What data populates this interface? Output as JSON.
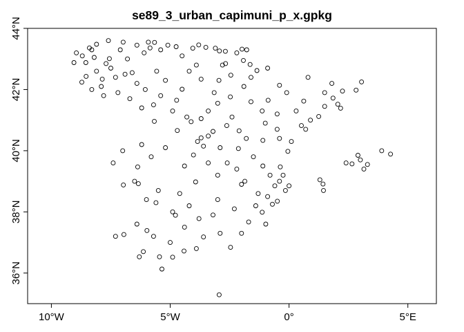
{
  "chart_data": {
    "type": "scatter",
    "title": "se89_3_urban_capimuni_p_x.gpkg",
    "xlabel": "",
    "ylabel": "",
    "xlim": [
      -11.0,
      6.2
    ],
    "ylim": [
      35.0,
      44.0
    ],
    "grid": false,
    "legend": "none",
    "point_color": "#000000",
    "x_ticks": [
      {
        "value": -10,
        "label": "10°W"
      },
      {
        "value": -5,
        "label": "5°W"
      },
      {
        "value": 0,
        "label": "0°"
      },
      {
        "value": 5,
        "label": "5°E"
      }
    ],
    "y_ticks": [
      {
        "value": 36,
        "label": "36°N"
      },
      {
        "value": 38,
        "label": "38°N"
      },
      {
        "value": 40,
        "label": "40°N"
      },
      {
        "value": 42,
        "label": "42°N"
      },
      {
        "value": 44,
        "label": "44°N"
      }
    ],
    "points": [
      [
        -8.55,
        42.88
      ],
      [
        -8.72,
        42.24
      ],
      [
        -8.4,
        43.36
      ],
      [
        -8.54,
        42.43
      ],
      [
        -7.86,
        42.34
      ],
      [
        -7.56,
        43.01
      ],
      [
        -6.98,
        43.55
      ],
      [
        -8.1,
        43.48
      ],
      [
        -7.9,
        42.1
      ],
      [
        -8.3,
        42.0
      ],
      [
        -9.05,
        42.88
      ],
      [
        -8.95,
        43.2
      ],
      [
        -8.2,
        43.05
      ],
      [
        -7.3,
        42.4
      ],
      [
        -7.1,
        43.3
      ],
      [
        -7.5,
        42.7
      ],
      [
        -8.1,
        42.6
      ],
      [
        -8.7,
        43.1
      ],
      [
        -7.7,
        42.85
      ],
      [
        -6.6,
        42.55
      ],
      [
        -5.85,
        43.36
      ],
      [
        -5.66,
        43.54
      ],
      [
        -5.92,
        43.55
      ],
      [
        -4.75,
        43.4
      ],
      [
        -6.4,
        43.45
      ],
      [
        -6.1,
        43.2
      ],
      [
        -5.4,
        43.3
      ],
      [
        -5.1,
        43.45
      ],
      [
        -3.8,
        43.46
      ],
      [
        -4.05,
        43.35
      ],
      [
        -3.5,
        43.38
      ],
      [
        -3.1,
        43.35
      ],
      [
        -2.93,
        43.26
      ],
      [
        -2.68,
        43.25
      ],
      [
        -2.67,
        42.85
      ],
      [
        -1.98,
        43.32
      ],
      [
        -2.2,
        43.2
      ],
      [
        -1.78,
        43.3
      ],
      [
        -1.64,
        42.82
      ],
      [
        -1.92,
        42.95
      ],
      [
        -1.35,
        42.62
      ],
      [
        -1.6,
        42.4
      ],
      [
        -2.45,
        42.47
      ],
      [
        -2.95,
        42.3
      ],
      [
        -3.7,
        42.34
      ],
      [
        -4.5,
        42.01
      ],
      [
        -4.73,
        41.65
      ],
      [
        -4.2,
        42.6
      ],
      [
        -5.57,
        42.6
      ],
      [
        -5.7,
        41.5
      ],
      [
        -5.67,
        40.96
      ],
      [
        -6.05,
        42.0
      ],
      [
        -6.9,
        42.5
      ],
      [
        -6.4,
        42.2
      ],
      [
        -3.15,
        41.9
      ],
      [
        -2.47,
        41.76
      ],
      [
        -3.0,
        41.55
      ],
      [
        -3.7,
        41.05
      ],
      [
        -4.12,
        40.95
      ],
      [
        -4.7,
        40.66
      ],
      [
        -3.7,
        40.42
      ],
      [
        -3.4,
        40.48
      ],
      [
        -3.85,
        40.3
      ],
      [
        -3.6,
        40.15
      ],
      [
        -3.2,
        40.63
      ],
      [
        -2.62,
        40.82
      ],
      [
        -2.1,
        40.65
      ],
      [
        -4.02,
        39.86
      ],
      [
        -4.4,
        39.5
      ],
      [
        -3.93,
        38.98
      ],
      [
        -3.0,
        39.2
      ],
      [
        -2.13,
        40.07
      ],
      [
        -1.86,
        39.0
      ],
      [
        -1.1,
        39.5
      ],
      [
        -1.13,
        41.3
      ],
      [
        -0.88,
        41.65
      ],
      [
        -0.4,
        42.14
      ],
      [
        -0.1,
        41.9
      ],
      [
        -1.1,
        40.34
      ],
      [
        -0.5,
        40.7
      ],
      [
        0.62,
        41.62
      ],
      [
        0.3,
        41.3
      ],
      [
        1.25,
        41.12
      ],
      [
        1.5,
        41.45
      ],
      [
        2.17,
        41.39
      ],
      [
        2.05,
        41.52
      ],
      [
        1.85,
        41.72
      ],
      [
        2.25,
        41.95
      ],
      [
        2.82,
        41.98
      ],
      [
        3.05,
        42.25
      ],
      [
        1.8,
        42.2
      ],
      [
        1.5,
        41.9
      ],
      [
        0.9,
        41.0
      ],
      [
        0.52,
        40.82
      ],
      [
        -0.05,
        39.98
      ],
      [
        -0.37,
        39.47
      ],
      [
        -0.25,
        39.2
      ],
      [
        -0.4,
        39.0
      ],
      [
        -0.6,
        38.85
      ],
      [
        0.0,
        38.85
      ],
      [
        -0.15,
        38.7
      ],
      [
        -0.49,
        38.35
      ],
      [
        -0.7,
        38.25
      ],
      [
        -0.9,
        38.5
      ],
      [
        -1.13,
        37.99
      ],
      [
        -0.98,
        37.6
      ],
      [
        -1.7,
        37.67
      ],
      [
        -1.4,
        38.2
      ],
      [
        -2.46,
        36.84
      ],
      [
        -2.9,
        37.3
      ],
      [
        -3.6,
        37.18
      ],
      [
        -3.79,
        37.78
      ],
      [
        -3.2,
        37.9
      ],
      [
        -4.78,
        37.89
      ],
      [
        -4.4,
        37.5
      ],
      [
        -4.42,
        36.72
      ],
      [
        -4.9,
        36.52
      ],
      [
        -5.35,
        36.13
      ],
      [
        -5.45,
        36.53
      ],
      [
        -6.13,
        36.7
      ],
      [
        -6.3,
        36.53
      ],
      [
        -5.98,
        37.39
      ],
      [
        -5.7,
        37.2
      ],
      [
        -6.4,
        37.6
      ],
      [
        -6.95,
        37.26
      ],
      [
        -7.3,
        37.2
      ],
      [
        -6.97,
        38.88
      ],
      [
        -6.34,
        38.92
      ],
      [
        -6.0,
        38.4
      ],
      [
        -5.5,
        38.7
      ],
      [
        -6.37,
        39.47
      ],
      [
        -5.8,
        39.8
      ],
      [
        -6.2,
        40.2
      ],
      [
        -5.2,
        40.1
      ],
      [
        -4.9,
        38.0
      ],
      [
        -4.2,
        38.2
      ],
      [
        -3.0,
        38.4
      ],
      [
        -2.3,
        38.1
      ],
      [
        -2.0,
        38.9
      ],
      [
        -2.6,
        39.6
      ],
      [
        -1.5,
        39.8
      ],
      [
        -1.0,
        40.9
      ],
      [
        -0.5,
        41.2
      ],
      [
        -1.9,
        42.1
      ],
      [
        -2.8,
        42.8
      ],
      [
        -4.5,
        43.1
      ],
      [
        -6.8,
        43.0
      ],
      [
        -7.8,
        41.8
      ],
      [
        -6.7,
        41.7
      ],
      [
        -5.4,
        41.8
      ],
      [
        -4.9,
        41.3
      ],
      [
        -3.4,
        41.3
      ],
      [
        -2.4,
        41.1
      ],
      [
        -1.6,
        41.6
      ],
      [
        -0.4,
        40.4
      ],
      [
        0.7,
        40.7
      ],
      [
        2.65,
        39.57
      ],
      [
        3.0,
        39.7
      ],
      [
        3.15,
        39.4
      ],
      [
        2.4,
        39.6
      ],
      [
        2.9,
        39.85
      ],
      [
        3.3,
        39.55
      ],
      [
        4.27,
        39.89
      ],
      [
        3.9,
        40.0
      ],
      [
        1.43,
        38.91
      ],
      [
        1.3,
        39.05
      ],
      [
        1.45,
        38.7
      ],
      [
        -2.94,
        35.29
      ],
      [
        -7.4,
        39.6
      ],
      [
        -7.0,
        40.0
      ],
      [
        -5.0,
        37.0
      ],
      [
        -3.9,
        36.8
      ],
      [
        -2.0,
        37.3
      ],
      [
        -1.3,
        38.6
      ],
      [
        -0.8,
        39.2
      ],
      [
        0.1,
        40.3
      ],
      [
        -6.5,
        39.0
      ],
      [
        -5.6,
        38.3
      ],
      [
        -4.6,
        38.6
      ],
      [
        -3.4,
        39.6
      ],
      [
        -2.9,
        40.1
      ],
      [
        -1.8,
        40.4
      ],
      [
        -5.2,
        42.3
      ],
      [
        -3.9,
        42.8
      ],
      [
        -0.9,
        42.7
      ],
      [
        0.8,
        42.4
      ],
      [
        -7.2,
        41.9
      ],
      [
        -8.3,
        43.3
      ],
      [
        -7.6,
        43.6
      ],
      [
        -6.2,
        41.4
      ],
      [
        -4.3,
        41.1
      ],
      [
        -2.2,
        39.4
      ]
    ]
  }
}
